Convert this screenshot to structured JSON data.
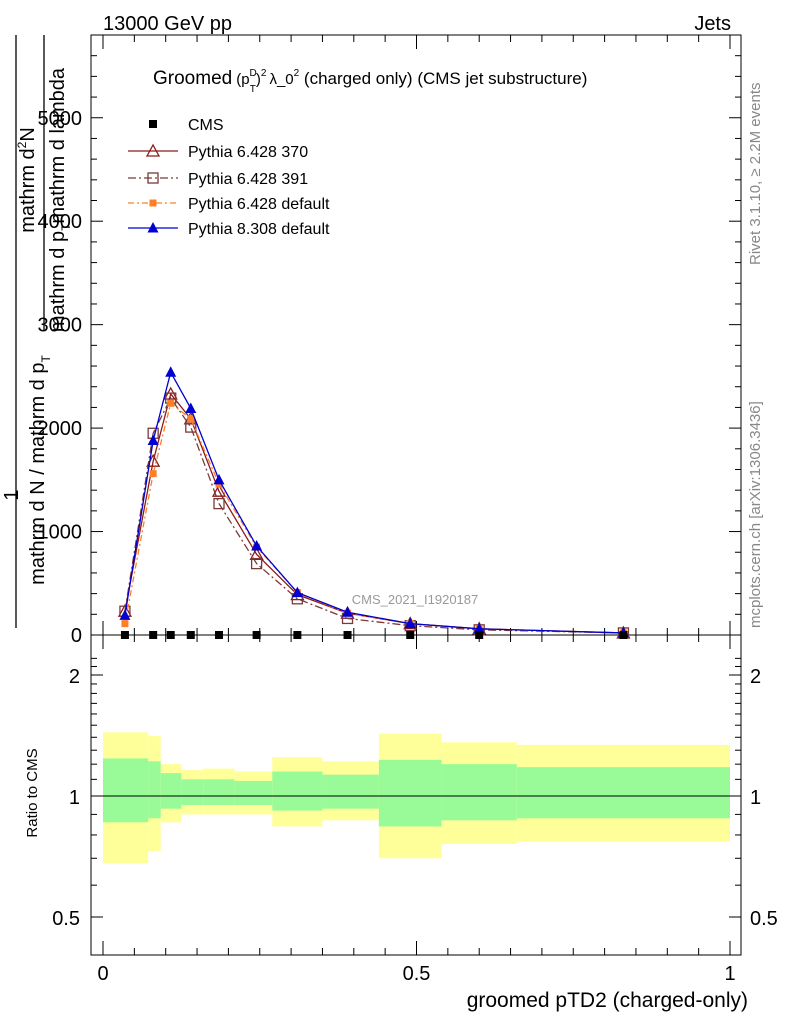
{
  "header": {
    "left": "13000 GeV pp",
    "right": "Jets"
  },
  "title": {
    "prefix": "Groomed",
    "p": "(p",
    "sup_d": "D",
    "sub_t": "T",
    "close": ")",
    "sup2": "2",
    "lambda": "λ_0",
    "sup3": "2",
    "suffix": " (charged only) (CMS jet substructure)"
  },
  "side_labels": {
    "rivet": "Rivet 3.1.10, ≥ 2.2M events",
    "mcplots": "mcplots.cern.ch [arXiv:1306.3436]"
  },
  "watermark": "CMS_2021_I1920187",
  "ylabel_main": {
    "one": "1",
    "num": "mathrm d²N",
    "num_a": "mathrm d",
    "num_sup": "2",
    "num_b": "N",
    "den": "mathrm d p_mathrm d lambda",
    "den_a": "mathrm d p",
    "den_sub": "T",
    "den_b": "mathrm d lambda",
    "left_num": "mathrm d N / mathrm d p",
    "left_sub": "T",
    "left_num_a": "mathrm d N / mathrm d p",
    "left_den_a": "mathrm d N / mathrm d p"
  },
  "ylabel_ratio": "Ratio to CMS",
  "xlabel": "groomed pTD2 (charged-only)",
  "chart_data": {
    "type": "line",
    "main": {
      "ylim": [
        0,
        5800
      ],
      "yticks": [
        0,
        1000,
        2000,
        3000,
        4000,
        5000
      ],
      "ytick_labels": [
        "0",
        "1000",
        "2000",
        "3000",
        "4000",
        "5000"
      ],
      "x": [
        0.035,
        0.08,
        0.108,
        0.14,
        0.185,
        0.245,
        0.31,
        0.39,
        0.49,
        0.6,
        0.83
      ],
      "series": [
        {
          "name": "CMS",
          "color": "#000000",
          "marker": "square",
          "values": [
            0,
            0,
            0,
            0,
            0,
            0,
            0,
            0,
            0,
            0,
            0
          ]
        },
        {
          "name": "Pythia 6.428 370",
          "color": "#8b1a1a",
          "marker": "open-triangle",
          "dash": "",
          "values": [
            230,
            1680,
            2330,
            2090,
            1390,
            780,
            390,
            210,
            110,
            60,
            20
          ]
        },
        {
          "name": "Pythia 6.428 391",
          "color": "#7a3a3a",
          "marker": "open-square",
          "dash": "8,3,2,3",
          "values": [
            230,
            1950,
            2290,
            2010,
            1270,
            690,
            350,
            160,
            90,
            50,
            20
          ]
        },
        {
          "name": "Pythia 6.428 default",
          "color": "#ff7f27",
          "marker": "filled-square",
          "dash": "6,3,2,3",
          "values": [
            110,
            1560,
            2240,
            2090,
            1460,
            850,
            410,
            210,
            110,
            60,
            20
          ]
        },
        {
          "name": "Pythia 8.308 default",
          "color": "#0000d0",
          "marker": "filled-triangle",
          "dash": "",
          "values": [
            190,
            1880,
            2540,
            2190,
            1500,
            860,
            410,
            220,
            110,
            60,
            20
          ]
        }
      ]
    },
    "ratio": {
      "ylim": [
        0.38,
        2.35
      ],
      "yticks": [
        0.5,
        1,
        2
      ],
      "ytick_labels": [
        "0.5",
        "1",
        "2"
      ],
      "bins": [
        {
          "lo": 0.0,
          "hi": 0.072,
          "g_lo": 0.86,
          "g_hi": 1.24,
          "y_lo": 0.68,
          "y_hi": 1.44
        },
        {
          "lo": 0.072,
          "hi": 0.092,
          "g_lo": 0.88,
          "g_hi": 1.22,
          "y_lo": 0.73,
          "y_hi": 1.41
        },
        {
          "lo": 0.092,
          "hi": 0.125,
          "g_lo": 0.93,
          "g_hi": 1.14,
          "y_lo": 0.86,
          "y_hi": 1.2
        },
        {
          "lo": 0.125,
          "hi": 0.16,
          "g_lo": 0.95,
          "g_hi": 1.1,
          "y_lo": 0.9,
          "y_hi": 1.16
        },
        {
          "lo": 0.16,
          "hi": 0.21,
          "g_lo": 0.95,
          "g_hi": 1.1,
          "y_lo": 0.9,
          "y_hi": 1.17
        },
        {
          "lo": 0.21,
          "hi": 0.27,
          "g_lo": 0.95,
          "g_hi": 1.09,
          "y_lo": 0.9,
          "y_hi": 1.15
        },
        {
          "lo": 0.27,
          "hi": 0.35,
          "g_lo": 0.92,
          "g_hi": 1.15,
          "y_lo": 0.84,
          "y_hi": 1.25
        },
        {
          "lo": 0.35,
          "hi": 0.44,
          "g_lo": 0.93,
          "g_hi": 1.13,
          "y_lo": 0.87,
          "y_hi": 1.22
        },
        {
          "lo": 0.44,
          "hi": 0.54,
          "g_lo": 0.84,
          "g_hi": 1.23,
          "y_lo": 0.7,
          "y_hi": 1.43
        },
        {
          "lo": 0.54,
          "hi": 0.66,
          "g_lo": 0.87,
          "g_hi": 1.2,
          "y_lo": 0.76,
          "y_hi": 1.36
        },
        {
          "lo": 0.66,
          "hi": 1.0,
          "g_lo": 0.88,
          "g_hi": 1.18,
          "y_lo": 0.77,
          "y_hi": 1.34
        }
      ],
      "band_colors": {
        "inner": "#98fb98",
        "outer": "#ffff99"
      }
    },
    "xlim": [
      0,
      1
    ],
    "xticks": [
      0,
      0.5,
      1
    ],
    "xtick_labels": [
      "0",
      "0.5",
      "1"
    ]
  }
}
